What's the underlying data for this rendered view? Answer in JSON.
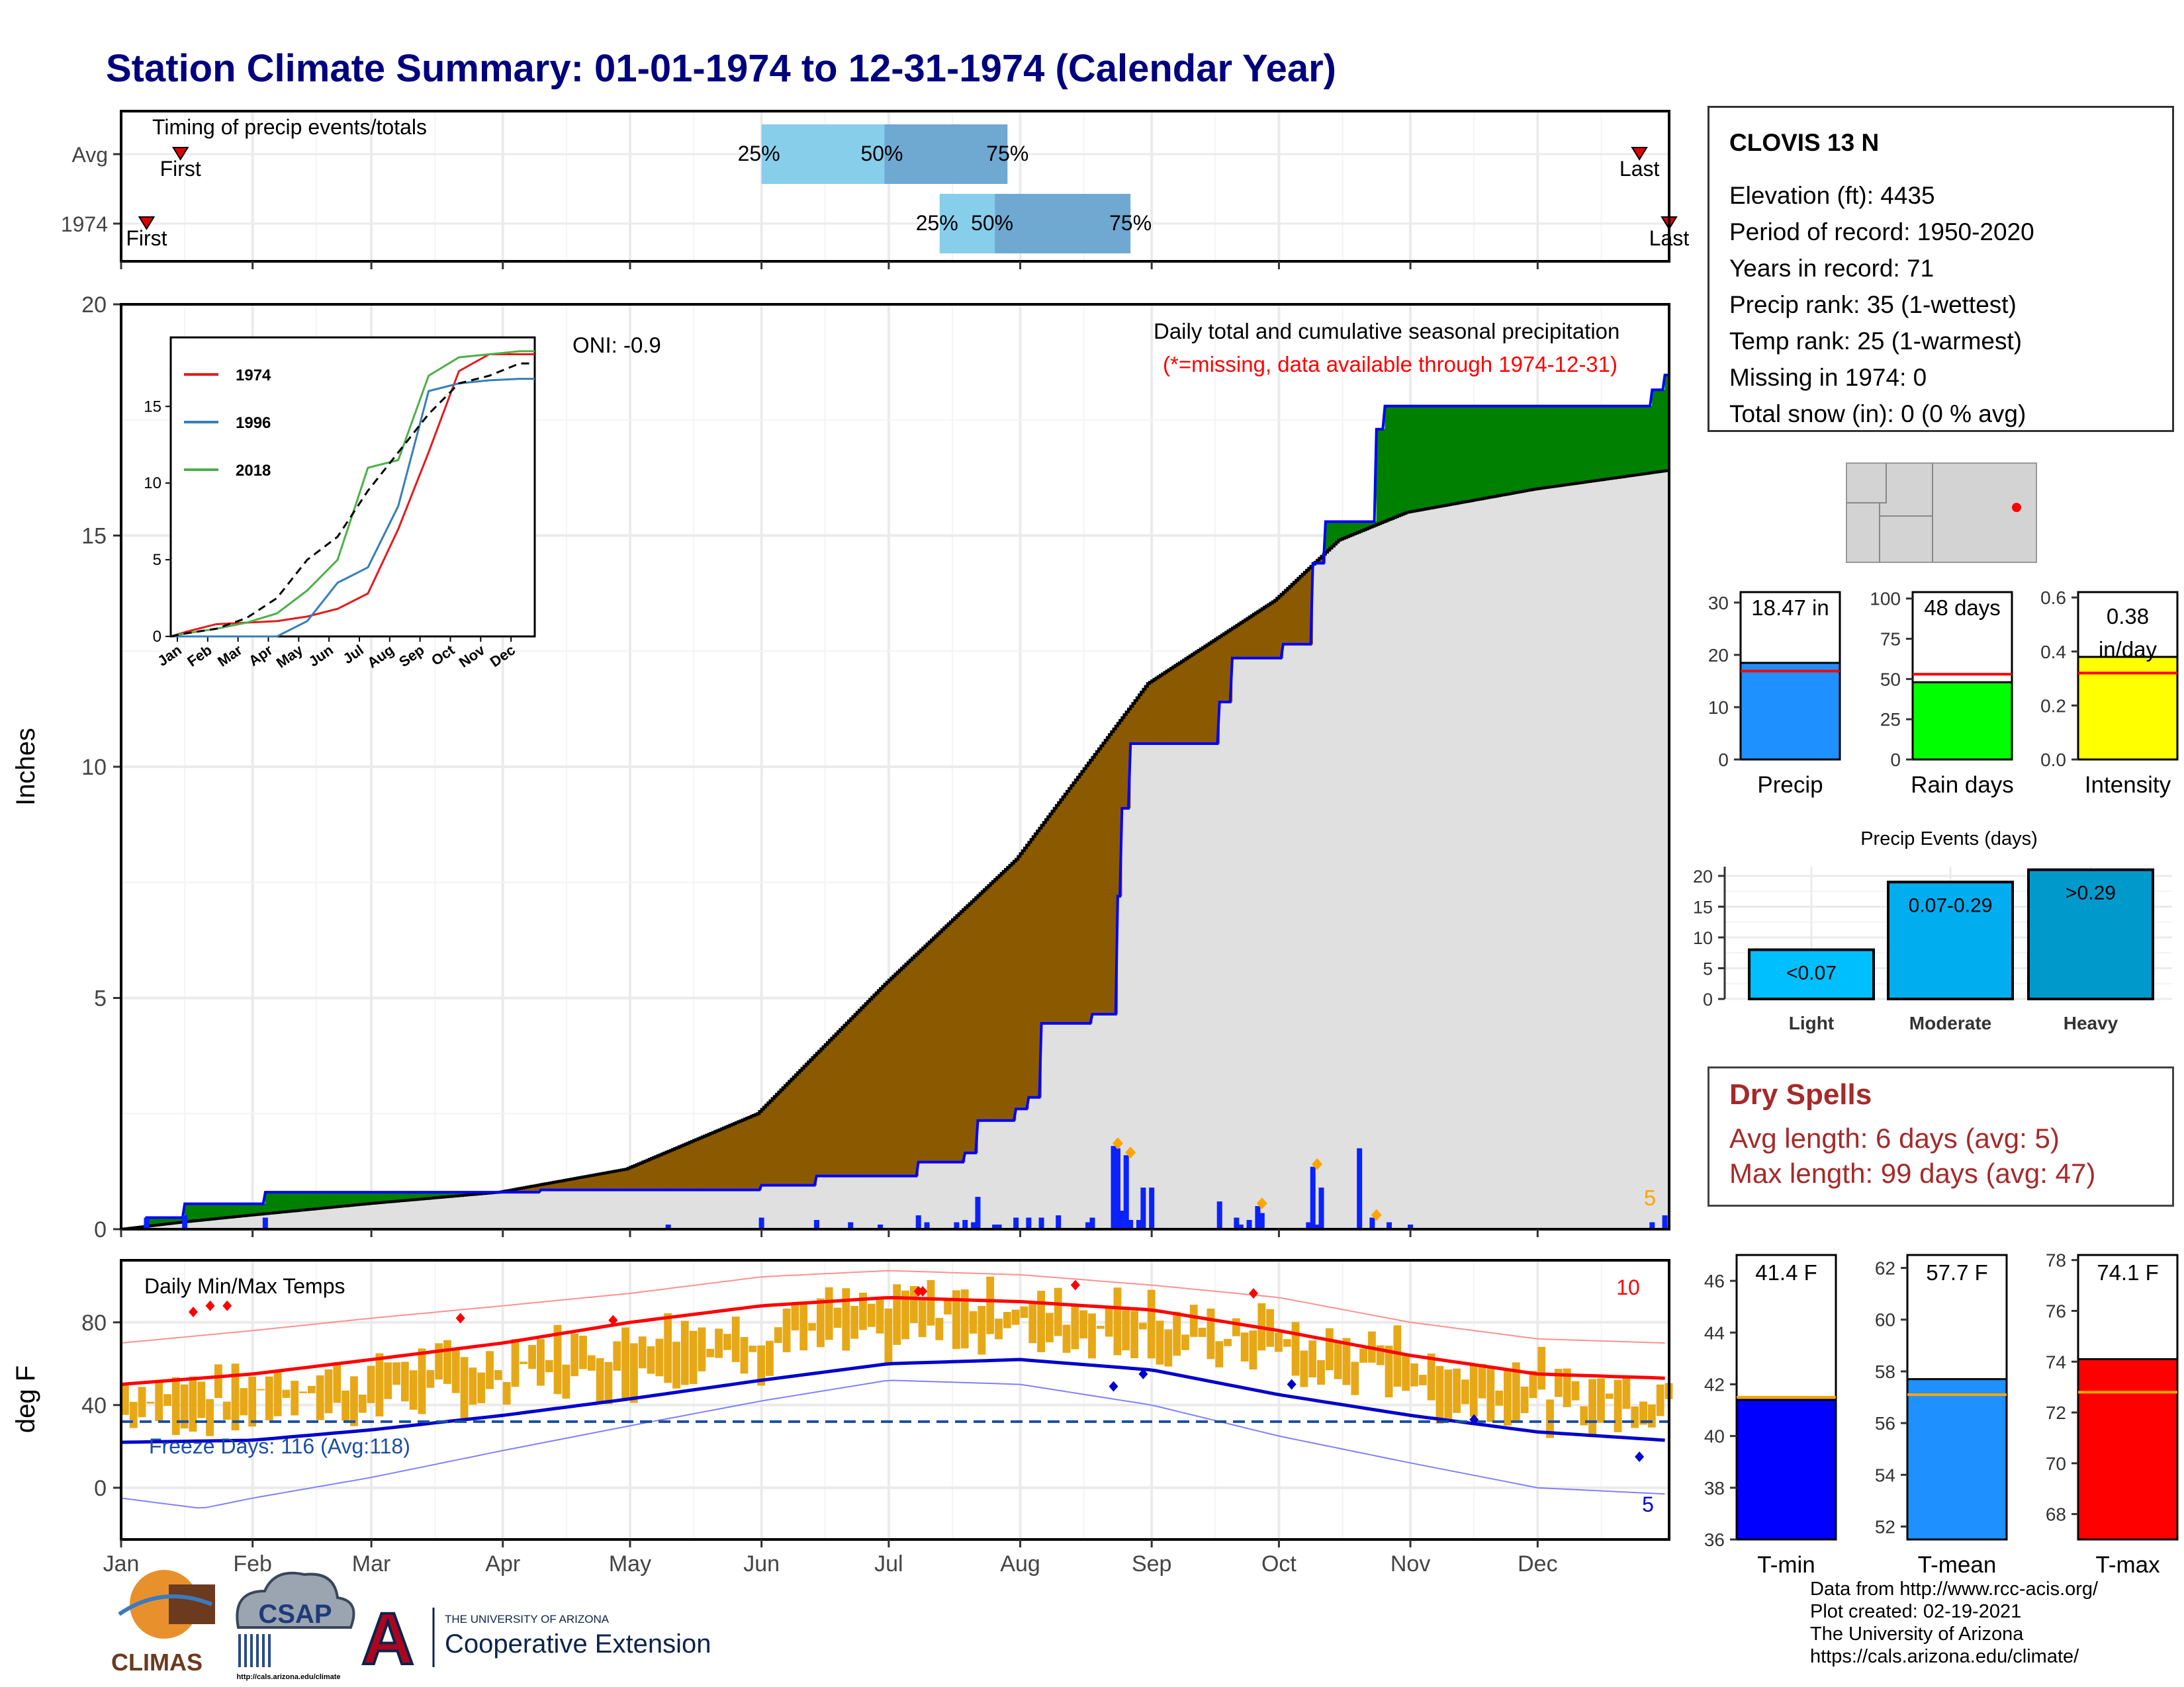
{
  "title": "Station Climate Summary: 01-01-1974 to 12-31-1974 (Calendar Year)",
  "timing": {
    "title": "Timing of precip events/totals",
    "rows": [
      {
        "label": "Avg",
        "first": "First",
        "last": "Last",
        "first_doy": 15,
        "last_doy": 359,
        "p25": 152,
        "p50": 181,
        "p75": 210,
        "p25_label": "25%",
        "p50_label": "50%",
        "p75_label": "75%"
      },
      {
        "label": "1974",
        "first": "First",
        "last": "Last",
        "first_doy": 7,
        "last_doy": 366,
        "p25": 194,
        "p50": 207,
        "p75": 239,
        "p25_label": "25%",
        "p50_label": "50%",
        "p75_label": "75%"
      }
    ]
  },
  "precip_panel": {
    "title": "Daily total and cumulative seasonal precipitation",
    "subtitle": "(*=missing, data available through 1974-12-31)",
    "ylabel": "Inches",
    "oni": "ONI: -0.9",
    "corner_count": "5",
    "colors": {
      "wet": "#008000",
      "dry": "#8B5A00",
      "climo_fill": "#e0e0e0",
      "obs_line": "#0000ff",
      "bars": "#0a22ff",
      "extreme": "#FFA500"
    }
  },
  "inset": {
    "legend": [
      {
        "name": "1974",
        "color": "#e41a1c"
      },
      {
        "name": "1996",
        "color": "#377eb8"
      },
      {
        "name": "2018",
        "color": "#4daf4a"
      }
    ],
    "months": [
      "Jan",
      "Feb",
      "Mar",
      "Apr",
      "May",
      "Jun",
      "Jul",
      "Aug",
      "Sep",
      "Oct",
      "Nov",
      "Dec"
    ]
  },
  "temp_panel": {
    "title": "Daily Min/Max Temps",
    "ylabel": "deg F",
    "freeze_label": "Freeze Days: 116 (Avg:118)",
    "max_count": "10",
    "min_count": "5",
    "freeze_line": 32,
    "colors": {
      "bars": "#e6a817",
      "tmax_avg": "#ff0000",
      "tmin_avg": "#0000cd",
      "record_hi": "#ff9090",
      "record_lo": "#8080ff"
    }
  },
  "x_months": [
    "Jan",
    "Feb",
    "Mar",
    "Apr",
    "May",
    "Jun",
    "Jul",
    "Aug",
    "Sep",
    "Oct",
    "Nov",
    "Dec"
  ],
  "station": {
    "name": "CLOVIS 13 N",
    "lines": [
      "Elevation (ft): 4435",
      "Period of record: 1950-2020",
      "Years in record: 71",
      "Precip rank: 35 (1-wettest)",
      "Temp rank: 25 (1-warmest)",
      "Missing in 1974: 0",
      "Total snow (in): 0 (0 % avg)"
    ]
  },
  "summary_bars": [
    {
      "label": "Precip",
      "value_label": "18.47 in",
      "value": 18.47,
      "avg": 16.9,
      "ymax": 32,
      "ticks": [
        0,
        10,
        20,
        30
      ],
      "color": "#1e90ff"
    },
    {
      "label": "Rain days",
      "value_label": "48 days",
      "value": 48,
      "avg": 53,
      "ymax": 104,
      "ticks": [
        0,
        25,
        50,
        75,
        100
      ],
      "color": "#00ff00"
    },
    {
      "label": "Intensity",
      "value_label": "0.38 in/day",
      "value": 0.38,
      "avg": 0.32,
      "ymax": 0.62,
      "ticks": [
        0.0,
        0.2,
        0.4,
        0.6
      ],
      "color": "#ffff00"
    }
  ],
  "precip_events": {
    "title": "Precip Events (days)",
    "ticks": [
      0,
      5,
      10,
      15,
      20
    ],
    "bars": [
      {
        "category": "Light",
        "label": "<0.07",
        "value": 8,
        "color": "#00bfff"
      },
      {
        "category": "Moderate",
        "label": "0.07-0.29",
        "value": 19,
        "color": "#00aeef"
      },
      {
        "category": "Heavy",
        "label": ">0.29",
        "value": 21,
        "color": "#0099cc"
      }
    ]
  },
  "dry_spells": {
    "title": "Dry Spells",
    "lines": [
      "Avg length: 6 days (avg: 5)",
      "Max length: 99 days (avg: 47)"
    ],
    "color": "#a52a2a"
  },
  "temp_bars": [
    {
      "label": "T-min",
      "value_label": "41.4 F",
      "value": 41.4,
      "avg": 41.5,
      "ymin": 36,
      "ymax": 47,
      "ticks": [
        36,
        38,
        40,
        42,
        44,
        46
      ],
      "color": "#0000ff"
    },
    {
      "label": "T-mean",
      "value_label": "57.7 F",
      "value": 57.7,
      "avg": 57.1,
      "ymin": 51.5,
      "ymax": 62.5,
      "ticks": [
        52,
        54,
        56,
        58,
        60,
        62
      ],
      "color": "#1e90ff"
    },
    {
      "label": "T-max",
      "value_label": "74.1 F",
      "value": 74.1,
      "avg": 72.8,
      "ymin": 67,
      "ymax": 78.2,
      "ticks": [
        68,
        70,
        72,
        74,
        76,
        78
      ],
      "color": "#ff0000"
    }
  ],
  "credits": [
    "Data from http://www.rcc-acis.org/",
    "Plot created: 02-19-2021",
    "The University of Arizona",
    "https://cals.arizona.edu/climate/"
  ],
  "logos": {
    "climas": "CLIMAS",
    "csap": "CSAP",
    "csap_url": "http://cals.arizona.edu/climate",
    "ua_small": "THE UNIVERSITY OF ARIZONA",
    "ua_big": "Cooperative Extension"
  },
  "chart_data": [
    {
      "type": "area",
      "title": "Daily total and cumulative seasonal precipitation",
      "ylabel": "Inches",
      "ylim": [
        0,
        20
      ],
      "x_unit": "day of year",
      "obs_cumulative": [
        [
          1,
          0
        ],
        [
          7,
          0.25
        ],
        [
          16,
          0.25
        ],
        [
          16,
          0.55
        ],
        [
          35,
          0.55
        ],
        [
          35,
          0.8
        ],
        [
          100,
          0.8
        ],
        [
          100,
          0.85
        ],
        [
          130,
          0.85
        ],
        [
          130,
          0.85
        ],
        [
          152,
          0.85
        ],
        [
          152,
          0.95
        ],
        [
          165,
          0.95
        ],
        [
          165,
          1.15
        ],
        [
          180,
          1.15
        ],
        [
          180,
          1.15
        ],
        [
          189,
          1.15
        ],
        [
          189,
          1.45
        ],
        [
          200,
          1.45
        ],
        [
          200,
          1.65
        ],
        [
          203,
          1.65
        ],
        [
          203,
          2.35
        ],
        [
          212,
          2.35
        ],
        [
          212,
          2.6
        ],
        [
          215,
          2.6
        ],
        [
          215,
          2.85
        ],
        [
          218,
          2.85
        ],
        [
          218,
          4.45
        ],
        [
          230,
          4.45
        ],
        [
          230,
          4.65
        ],
        [
          236,
          4.65
        ],
        [
          236,
          7.2
        ],
        [
          237,
          7.2
        ],
        [
          237,
          9.1
        ],
        [
          239,
          9.1
        ],
        [
          239,
          10.5
        ],
        [
          260,
          10.5
        ],
        [
          260,
          11.4
        ],
        [
          263,
          11.4
        ],
        [
          263,
          12.35
        ],
        [
          275,
          12.35
        ],
        [
          275,
          12.65
        ],
        [
          280,
          12.65
        ],
        [
          280,
          12.65
        ],
        [
          282,
          12.65
        ],
        [
          282,
          14.4
        ],
        [
          285,
          14.4
        ],
        [
          285,
          15.3
        ],
        [
          297,
          15.3
        ],
        [
          297,
          17.3
        ],
        [
          299,
          17.3
        ],
        [
          299,
          17.8
        ],
        [
          362,
          17.8
        ],
        [
          362,
          18.15
        ],
        [
          365,
          18.15
        ],
        [
          365,
          18.47
        ]
      ],
      "climo_cumulative": [
        [
          1,
          0
        ],
        [
          15,
          0.15
        ],
        [
          31,
          0.3
        ],
        [
          59,
          0.55
        ],
        [
          90,
          0.8
        ],
        [
          120,
          1.3
        ],
        [
          151,
          2.5
        ],
        [
          181,
          5.3
        ],
        [
          212,
          8.0
        ],
        [
          243,
          11.8
        ],
        [
          273,
          13.6
        ],
        [
          288,
          14.9
        ],
        [
          304,
          15.5
        ],
        [
          334,
          16.0
        ],
        [
          365,
          16.4
        ]
      ],
      "daily_precip": [
        [
          7,
          0.25
        ],
        [
          16,
          0.3
        ],
        [
          35,
          0.25
        ],
        [
          130,
          0.1
        ],
        [
          152,
          0.25
        ],
        [
          165,
          0.2
        ],
        [
          173,
          0.15
        ],
        [
          180,
          0.1
        ],
        [
          189,
          0.3
        ],
        [
          191,
          0.15
        ],
        [
          198,
          0.15
        ],
        [
          200,
          0.2
        ],
        [
          202,
          0.15
        ],
        [
          203,
          0.7
        ],
        [
          207,
          0.1
        ],
        [
          208,
          0.1
        ],
        [
          212,
          0.25
        ],
        [
          215,
          0.25
        ],
        [
          218,
          0.25
        ],
        [
          222,
          0.3
        ],
        [
          229,
          0.15
        ],
        [
          230,
          0.25
        ],
        [
          235,
          1.8
        ],
        [
          236,
          1.75
        ],
        [
          237,
          0.4
        ],
        [
          238,
          1.6
        ],
        [
          239,
          0.2
        ],
        [
          241,
          0.2
        ],
        [
          242,
          0.9
        ],
        [
          244,
          0.9
        ],
        [
          260,
          0.6
        ],
        [
          264,
          0.25
        ],
        [
          265,
          0.1
        ],
        [
          267,
          0.2
        ],
        [
          269,
          0.5
        ],
        [
          270,
          0.35
        ],
        [
          281,
          0.15
        ],
        [
          282,
          1.35
        ],
        [
          283,
          0.1
        ],
        [
          284,
          0.9
        ],
        [
          293,
          1.75
        ],
        [
          296,
          0.25
        ],
        [
          300,
          0.15
        ],
        [
          305,
          0.1
        ],
        [
          362,
          0.15
        ],
        [
          365,
          0.3
        ]
      ],
      "extreme_days": [
        236,
        239,
        270,
        283,
        297
      ]
    },
    {
      "type": "line",
      "title": "",
      "ylim": [
        0,
        20
      ],
      "x": [
        "Jan",
        "Feb",
        "Mar",
        "Apr",
        "May",
        "Jun",
        "Jul",
        "Aug",
        "Sep",
        "Oct",
        "Nov",
        "Dec"
      ],
      "series": [
        {
          "name": "1974",
          "values": [
            0.3,
            0.8,
            0.9,
            1.0,
            1.3,
            1.8,
            2.8,
            7.0,
            12.0,
            17.3,
            18.4,
            18.4
          ]
        },
        {
          "name": "1996",
          "values": [
            0,
            0,
            0,
            0,
            1.0,
            3.5,
            4.5,
            8.5,
            16.0,
            16.5,
            16.7,
            16.8
          ]
        },
        {
          "name": "2018",
          "values": [
            0.2,
            0.5,
            0.9,
            1.5,
            3.0,
            5.0,
            11.0,
            11.5,
            17.0,
            18.2,
            18.4,
            18.6
          ]
        },
        {
          "name": "",
          "values": [
            0.2,
            0.5,
            1.2,
            2.5,
            5.0,
            6.5,
            9.5,
            12.0,
            14.5,
            16.5,
            17.0,
            17.8
          ]
        }
      ]
    },
    {
      "type": "bar",
      "title": "Daily Min/Max Temps",
      "ylabel": "deg F",
      "ylim": [
        -25,
        110
      ],
      "monthly_tmax": [
        50,
        55,
        62,
        70,
        78,
        88,
        92,
        88,
        80,
        70,
        58,
        50
      ],
      "monthly_tmin": [
        22,
        26,
        31,
        38,
        46,
        56,
        62,
        60,
        52,
        40,
        28,
        22
      ],
      "avg_tmax_curve": [
        [
          1,
          50
        ],
        [
          32,
          55
        ],
        [
          60,
          62
        ],
        [
          91,
          70
        ],
        [
          121,
          80
        ],
        [
          152,
          88
        ],
        [
          182,
          92
        ],
        [
          213,
          90
        ],
        [
          244,
          86
        ],
        [
          274,
          76
        ],
        [
          305,
          64
        ],
        [
          335,
          55
        ],
        [
          365,
          53
        ]
      ],
      "avg_tmin_curve": [
        [
          1,
          22
        ],
        [
          32,
          23
        ],
        [
          60,
          28
        ],
        [
          91,
          35
        ],
        [
          121,
          43
        ],
        [
          152,
          52
        ],
        [
          182,
          60
        ],
        [
          213,
          62
        ],
        [
          244,
          57
        ],
        [
          274,
          45
        ],
        [
          305,
          35
        ],
        [
          335,
          27
        ],
        [
          365,
          23
        ]
      ],
      "record_high_curve": [
        [
          1,
          70
        ],
        [
          32,
          76
        ],
        [
          60,
          82
        ],
        [
          91,
          88
        ],
        [
          121,
          94
        ],
        [
          152,
          102
        ],
        [
          182,
          105
        ],
        [
          213,
          103
        ],
        [
          244,
          98
        ],
        [
          274,
          92
        ],
        [
          305,
          80
        ],
        [
          335,
          72
        ],
        [
          365,
          70
        ]
      ],
      "record_low_curve": [
        [
          1,
          -5
        ],
        [
          20,
          -10
        ],
        [
          32,
          -5
        ],
        [
          60,
          5
        ],
        [
          91,
          18
        ],
        [
          121,
          30
        ],
        [
          152,
          42
        ],
        [
          182,
          52
        ],
        [
          213,
          50
        ],
        [
          244,
          40
        ],
        [
          274,
          25
        ],
        [
          305,
          12
        ],
        [
          335,
          0
        ],
        [
          365,
          -3
        ]
      ],
      "freeze_line": 32
    },
    {
      "type": "bar",
      "title": "",
      "categories": [
        "Precip",
        "Rain days",
        "Intensity"
      ],
      "values": [
        18.47,
        48,
        0.38
      ]
    },
    {
      "type": "bar",
      "title": "Precip Events (days)",
      "categories": [
        "Light",
        "Moderate",
        "Heavy"
      ],
      "values": [
        8,
        19,
        21
      ]
    },
    {
      "type": "bar",
      "title": "",
      "categories": [
        "T-min",
        "T-mean",
        "T-max"
      ],
      "values": [
        41.4,
        57.7,
        74.1
      ]
    }
  ]
}
